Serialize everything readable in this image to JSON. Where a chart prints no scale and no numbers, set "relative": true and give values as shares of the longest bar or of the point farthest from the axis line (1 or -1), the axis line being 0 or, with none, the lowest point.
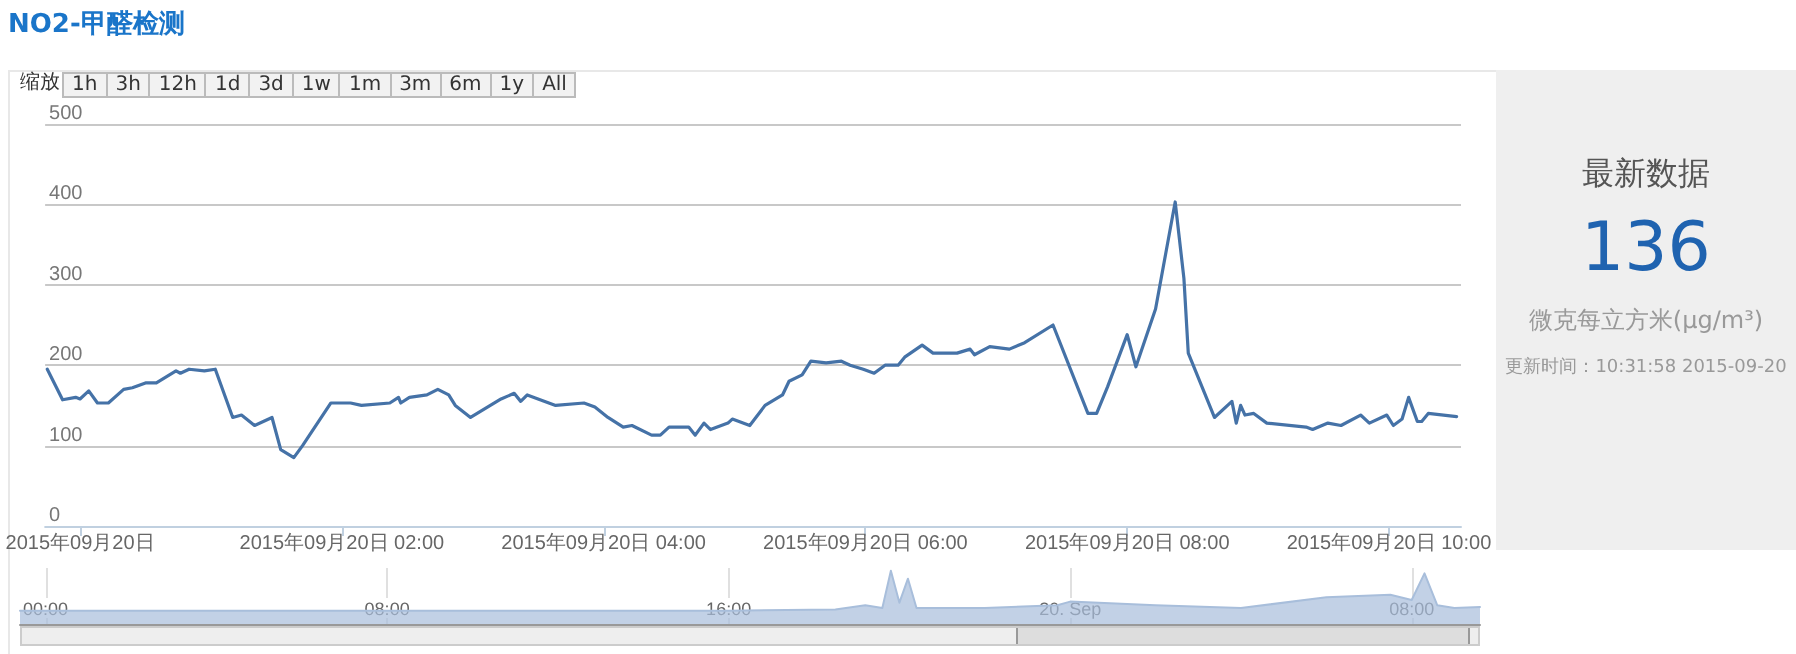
{
  "chart_data": [
    {
      "type": "line",
      "title": "NO2-甲醛检测",
      "annotations": [
        "最新数据",
        "136",
        "微克每立方米(μg/m³)",
        "更新时间：10:31:58 2015-09-20",
        "缩放",
        "1h",
        "3h",
        "12h",
        "1d",
        "3d",
        "1w",
        "1m",
        "3m",
        "6m",
        "1y",
        "All"
      ],
      "x": [
        "2015-09-19T23:45",
        "2015-09-19T23:52",
        "2015-09-19T23:58",
        "2015-09-20T00:00",
        "2015-09-20T00:04",
        "2015-09-20T00:08",
        "2015-09-20T00:13",
        "2015-09-20T00:20",
        "2015-09-20T00:24",
        "2015-09-20T00:30",
        "2015-09-20T00:35",
        "2015-09-20T00:44",
        "2015-09-20T00:46",
        "2015-09-20T00:50",
        "2015-09-20T00:57",
        "2015-09-20T01:02",
        "2015-09-20T01:10",
        "2015-09-20T01:14",
        "2015-09-20T01:20",
        "2015-09-20T01:28",
        "2015-09-20T01:32",
        "2015-09-20T01:38",
        "2015-09-20T01:42",
        "2015-09-20T01:55",
        "2015-09-20T02:04",
        "2015-09-20T02:09",
        "2015-09-20T02:22",
        "2015-09-20T02:26",
        "2015-09-20T02:27",
        "2015-09-20T02:31",
        "2015-09-20T02:39",
        "2015-09-20T02:44",
        "2015-09-20T02:49",
        "2015-09-20T02:52",
        "2015-09-20T02:59",
        "2015-09-20T03:13",
        "2015-09-20T03:19",
        "2015-09-20T03:22",
        "2015-09-20T03:25",
        "2015-09-20T03:38",
        "2015-09-20T03:51",
        "2015-09-20T03:56",
        "2015-09-20T04:02",
        "2015-09-20T04:09",
        "2015-09-20T04:13",
        "2015-09-20T04:22",
        "2015-09-20T04:26",
        "2015-09-20T04:30",
        "2015-09-20T04:39",
        "2015-09-20T04:42",
        "2015-09-20T04:46",
        "2015-09-20T04:49",
        "2015-09-20T04:57",
        "2015-09-20T04:59",
        "2015-09-20T05:07",
        "2015-09-20T05:14",
        "2015-09-20T05:22",
        "2015-09-20T05:25",
        "2015-09-20T05:31",
        "2015-09-20T05:35",
        "2015-09-20T05:42",
        "2015-09-20T05:49",
        "2015-09-20T05:53",
        "2015-09-20T05:59",
        "2015-09-20T06:04",
        "2015-09-20T06:09",
        "2015-09-20T06:15",
        "2015-09-20T06:18",
        "2015-09-20T06:26",
        "2015-09-20T06:31",
        "2015-09-20T06:42",
        "2015-09-20T06:48",
        "2015-09-20T06:50",
        "2015-09-20T06:57",
        "2015-09-20T07:06",
        "2015-09-20T07:13",
        "2015-09-20T07:26",
        "2015-09-20T07:42",
        "2015-09-20T07:46",
        "2015-09-20T07:51",
        "2015-09-20T08:00",
        "2015-09-20T08:04",
        "2015-09-20T08:13",
        "2015-09-20T08:22",
        "2015-09-20T08:26",
        "2015-09-20T08:28",
        "2015-09-20T08:40",
        "2015-09-20T08:48",
        "2015-09-20T08:50",
        "2015-09-20T08:52",
        "2015-09-20T08:54",
        "2015-09-20T08:58",
        "2015-09-20T09:04",
        "2015-09-20T09:22",
        "2015-09-20T09:25",
        "2015-09-20T09:32",
        "2015-09-20T09:38",
        "2015-09-20T09:47",
        "2015-09-20T09:51",
        "2015-09-20T09:59",
        "2015-09-20T10:02",
        "2015-09-20T10:06",
        "2015-09-20T10:09",
        "2015-09-20T10:13",
        "2015-09-20T10:15",
        "2015-09-20T10:18",
        "2015-09-20T10:31"
      ],
      "series": [
        {
          "color": "#4572a7",
          "values": [
            195,
            157,
            160,
            158,
            168,
            153,
            153,
            170,
            172,
            178,
            178,
            193,
            190,
            195,
            193,
            195,
            135,
            138,
            125,
            135,
            95,
            85,
            100,
            153,
            153,
            150,
            153,
            160,
            153,
            160,
            163,
            170,
            163,
            150,
            135,
            158,
            165,
            155,
            163,
            150,
            153,
            148,
            135,
            123,
            125,
            113,
            113,
            123,
            123,
            113,
            128,
            120,
            128,
            133,
            125,
            150,
            163,
            180,
            188,
            205,
            203,
            205,
            200,
            195,
            190,
            200,
            200,
            210,
            225,
            215,
            215,
            220,
            213,
            223,
            220,
            228,
            250,
            140,
            140,
            173,
            238,
            198,
            270,
            403,
            308,
            215,
            135,
            155,
            128,
            150,
            138,
            140,
            128,
            123,
            120,
            128,
            125,
            138,
            128,
            138,
            125,
            133,
            160,
            130,
            130,
            140,
            136
          ]
        }
      ],
      "xlim": [
        "2015-09-19T23:44",
        "2015-09-20T10:33"
      ],
      "xticks": [
        {
          "value": "2015-09-20T00:00",
          "label": "2015年09月20日"
        },
        {
          "value": "2015-09-20T02:00",
          "label": "2015年09月20日 02:00"
        },
        {
          "value": "2015-09-20T04:00",
          "label": "2015年09月20日 04:00"
        },
        {
          "value": "2015-09-20T06:00",
          "label": "2015年09月20日 06:00"
        },
        {
          "value": "2015-09-20T08:00",
          "label": "2015年09月20日 08:00"
        },
        {
          "value": "2015-09-20T10:00",
          "label": "2015年09月20日 10:00"
        }
      ],
      "ylim": [
        0,
        500
      ],
      "yticks": [
        0,
        100,
        200,
        300,
        400,
        500
      ],
      "grid": "y",
      "marker": "none",
      "line_style": "solid"
    },
    {
      "type": "area",
      "relative": true,
      "tick_labels": "x",
      "x": [
        "2015-09-18T23:24",
        "2015-09-19T04:00",
        "2015-09-19T08:00",
        "2015-09-19T12:00",
        "2015-09-19T16:00",
        "2015-09-19T18:30",
        "2015-09-19T19:12",
        "2015-09-19T19:36",
        "2015-09-19T19:48",
        "2015-09-19T20:00",
        "2015-09-19T20:12",
        "2015-09-19T20:24",
        "2015-09-19T22:00",
        "2015-09-19T23:42",
        "2015-09-20T00:00",
        "2015-09-20T02:00",
        "2015-09-20T04:00",
        "2015-09-20T06:00",
        "2015-09-20T07:30",
        "2015-09-20T08:00",
        "2015-09-20T08:18",
        "2015-09-20T08:36",
        "2015-09-20T09:00",
        "2015-09-20T09:36"
      ],
      "series": [
        {
          "color": "#a8bedb",
          "values": [
            0.25,
            0.25,
            0.25,
            0.25,
            0.25,
            0.27,
            0.35,
            0.3,
            1,
            0.4,
            0.85,
            0.3,
            0.3,
            0.35,
            0.42,
            0.35,
            0.3,
            0.5,
            0.55,
            0.45,
            0.95,
            0.35,
            0.3,
            0.32
          ]
        }
      ],
      "xlim": [
        "2015-09-18T23:24",
        "2015-09-20T09:36"
      ],
      "xticks": [
        {
          "value": "2015-09-19T00:00",
          "label": "00:00"
        },
        {
          "value": "2015-09-19T08:00",
          "label": "08:00"
        },
        {
          "value": "2015-09-19T16:00",
          "label": "16:00"
        },
        {
          "value": "2015-09-20T00:00",
          "label": "20. Sep"
        },
        {
          "value": "2015-09-20T08:00",
          "label": "08:00"
        }
      ],
      "grid": "x",
      "marker": "none"
    }
  ]
}
